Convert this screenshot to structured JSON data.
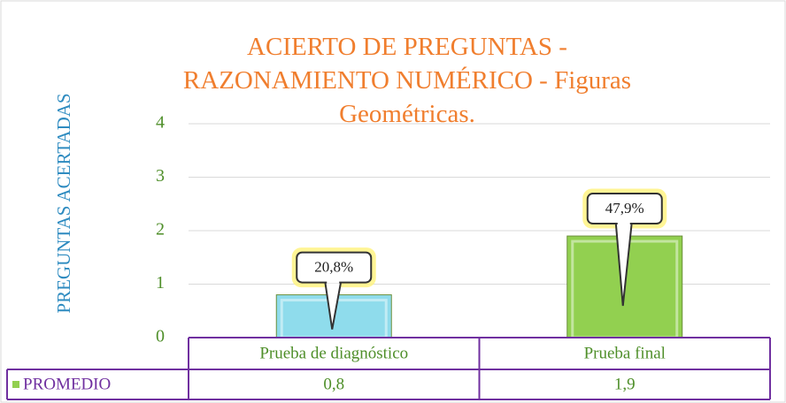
{
  "chart_data": {
    "type": "bar",
    "title": "ACIERTO DE PREGUNTAS - RAZONAMIENTO NUMÉRICO - Figuras Geométricas.",
    "y_label": "PREGUNTAS ACERTADAS",
    "categories": [
      "Prueba de diagnóstico",
      "Prueba final"
    ],
    "series": [
      {
        "name": "PROMEDIO",
        "color": "#92d050",
        "colors": [
          "#8fdcec",
          "#92d050"
        ],
        "values": [
          0.8,
          1.9
        ],
        "value_labels": [
          "0,8",
          "1,9"
        ]
      }
    ],
    "annotations": [
      "20,8%",
      "47,9%"
    ],
    "ylim": [
      0,
      4
    ],
    "yticks": [
      0,
      1,
      2,
      3,
      4
    ],
    "grid": true,
    "data_table": true
  }
}
